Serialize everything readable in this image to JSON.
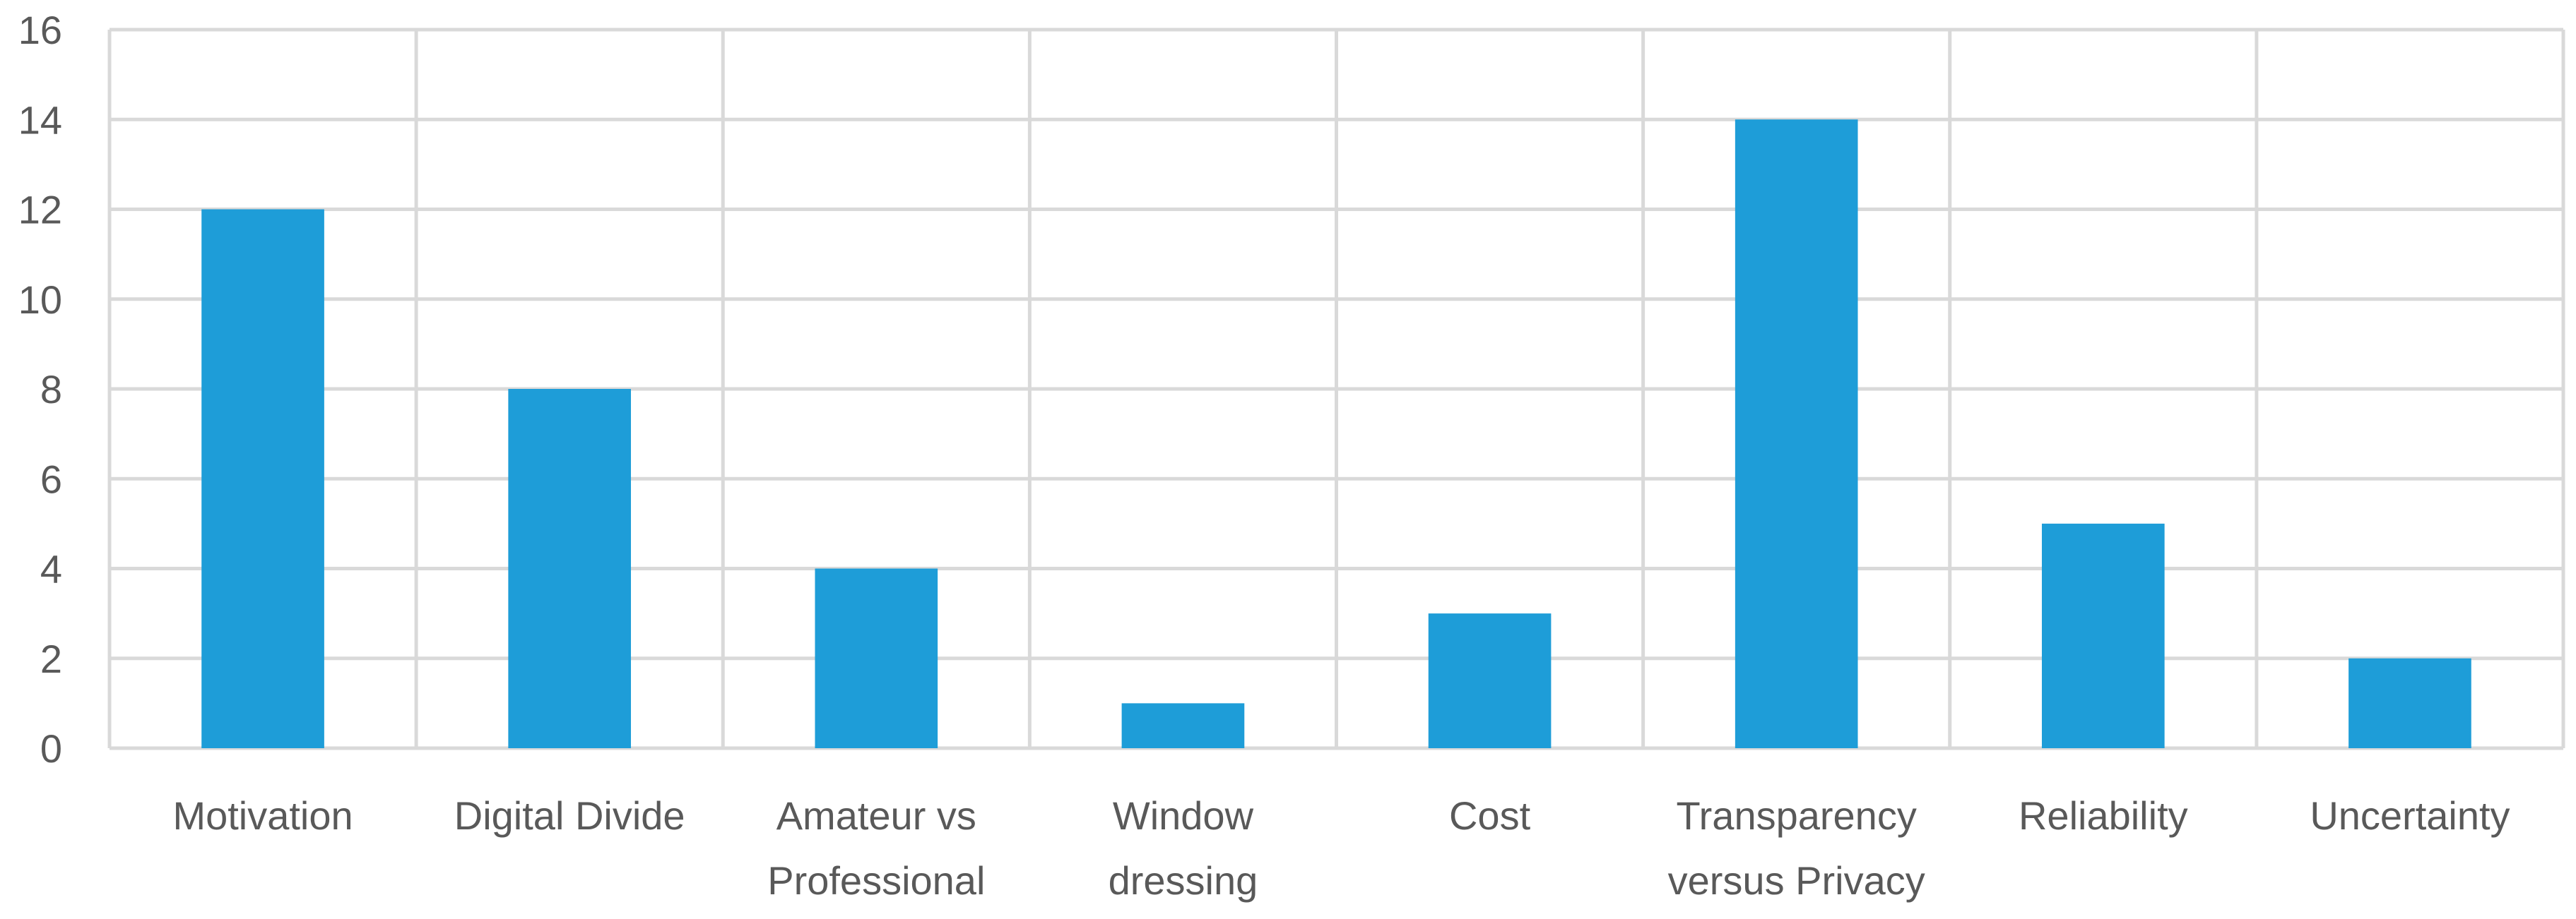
{
  "chart_data": {
    "type": "bar",
    "title": "",
    "xlabel": "",
    "ylabel": "",
    "categories": [
      [
        "Motivation"
      ],
      [
        "Digital Divide"
      ],
      [
        "Amateur vs",
        "Professional"
      ],
      [
        "Window",
        "dressing"
      ],
      [
        "Cost"
      ],
      [
        "Transparency",
        "versus Privacy"
      ],
      [
        "Reliability"
      ],
      [
        "Uncertainty"
      ]
    ],
    "values": [
      12,
      8,
      4,
      1,
      3,
      14,
      5,
      2
    ],
    "ylim": [
      0,
      16
    ],
    "yticks": [
      0,
      2,
      4,
      6,
      8,
      10,
      12,
      14,
      16
    ],
    "grid": true,
    "bar_color": "#1e9dd8",
    "grid_color": "#d9d9d9",
    "text_color": "#595959"
  }
}
